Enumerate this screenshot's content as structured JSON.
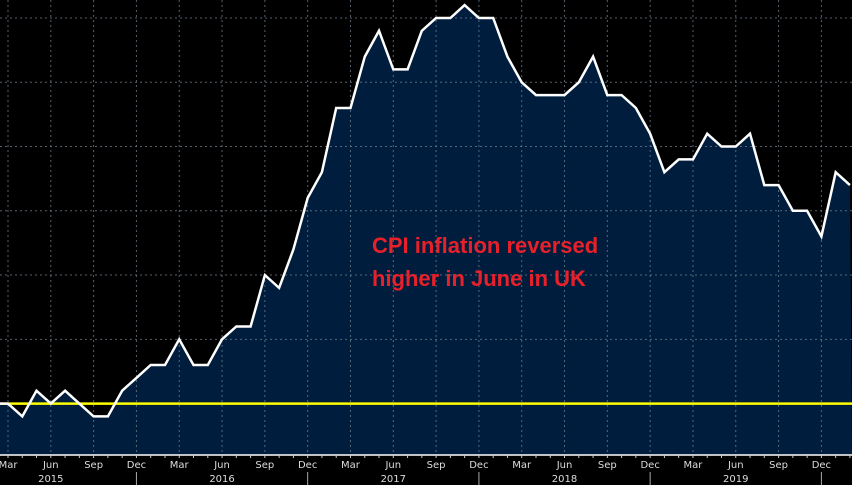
{
  "chart_data": {
    "type": "area",
    "title": "",
    "xlabel": "",
    "ylabel": "",
    "x": [
      "2015-03",
      "2015-04",
      "2015-05",
      "2015-06",
      "2015-07",
      "2015-08",
      "2015-09",
      "2015-10",
      "2015-11",
      "2015-12",
      "2016-01",
      "2016-02",
      "2016-03",
      "2016-04",
      "2016-05",
      "2016-06",
      "2016-07",
      "2016-08",
      "2016-09",
      "2016-10",
      "2016-11",
      "2016-12",
      "2017-01",
      "2017-02",
      "2017-03",
      "2017-04",
      "2017-05",
      "2017-06",
      "2017-07",
      "2017-08",
      "2017-09",
      "2017-10",
      "2017-11",
      "2017-12",
      "2018-01",
      "2018-02",
      "2018-03",
      "2018-04",
      "2018-05",
      "2018-06",
      "2018-07",
      "2018-08",
      "2018-09",
      "2018-10",
      "2018-11",
      "2018-12",
      "2019-01",
      "2019-02",
      "2019-03",
      "2019-04",
      "2019-05",
      "2019-06",
      "2019-07",
      "2019-08",
      "2019-09",
      "2019-10",
      "2019-11",
      "2019-12",
      "2020-01",
      "2020-02"
    ],
    "series": [
      {
        "values": [
          0.0,
          -0.1,
          0.1,
          0.0,
          0.1,
          0.0,
          -0.1,
          -0.1,
          0.1,
          0.2,
          0.3,
          0.3,
          0.5,
          0.3,
          0.3,
          0.5,
          0.6,
          0.6,
          1.0,
          0.9,
          1.2,
          1.6,
          1.8,
          2.3,
          2.3,
          2.7,
          2.9,
          2.6,
          2.6,
          2.9,
          3.0,
          3.0,
          3.1,
          3.0,
          3.0,
          2.7,
          2.5,
          2.4,
          2.4,
          2.4,
          2.5,
          2.7,
          2.4,
          2.4,
          2.3,
          2.1,
          1.8,
          1.9,
          1.9,
          2.1,
          2.0,
          2.0,
          2.1,
          1.7,
          1.7,
          1.5,
          1.5,
          1.3,
          1.8,
          1.7
        ]
      }
    ],
    "reference_line": {
      "value": 0,
      "color": "#ffff00"
    },
    "ylim": [
      -0.4,
      3.14
    ],
    "grid": true,
    "y_grid_step": 0.5,
    "x_tick_labels": [
      "Mar",
      "Jun",
      "Sep",
      "Dec",
      "Mar",
      "Jun",
      "Sep",
      "Dec",
      "Mar",
      "Jun",
      "Sep",
      "Dec",
      "Mar",
      "Jun",
      "Sep",
      "Dec",
      "Mar",
      "Jun",
      "Sep",
      "Dec"
    ],
    "year_labels": [
      "2015",
      "2016",
      "2017",
      "2018",
      "2019"
    ],
    "annotation": [
      "CPI inflation reversed",
      "higher in June in UK"
    ],
    "colors": {
      "background": "#000000",
      "area_fill": "#001d3d",
      "line": "#ffffff",
      "annotation": "#e8202a",
      "reference": "#ffff00"
    }
  }
}
